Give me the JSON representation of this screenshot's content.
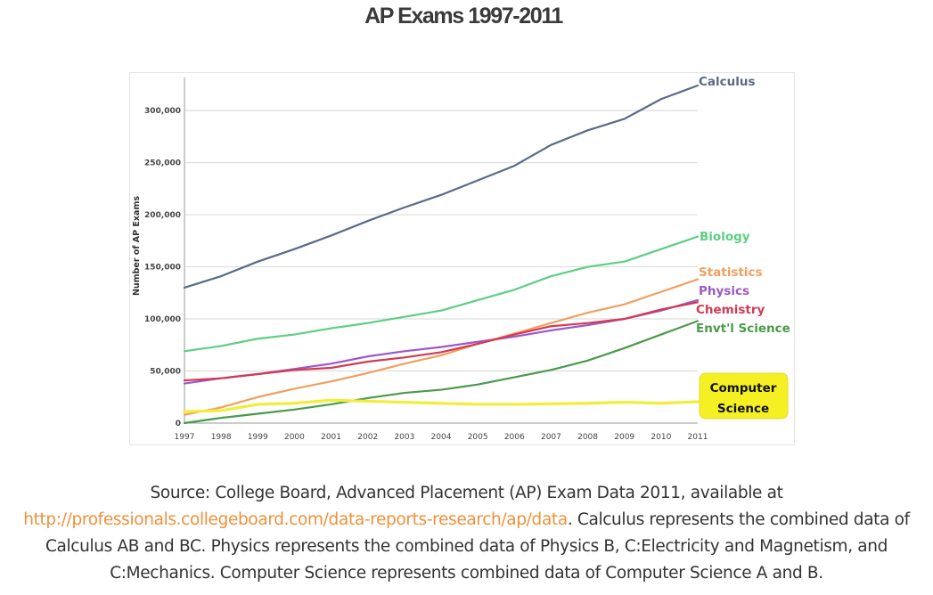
{
  "page": {
    "title": "AP Exams 1997-2011"
  },
  "caption": {
    "part1": "Source: College Board, Advanced Placement (AP) Exam Data 2011, available at",
    "link_text": "http://professionals.collegeboard.com/data-reports-research/ap/data",
    "part2": ". Calculus represents the combined data of Calculus AB and BC. Physics represents the combined data of Physics B, C:Electricity and Magnetism, and C:Mechanics. Computer Science represents combined data of Computer Science A and B."
  },
  "colors": {
    "Calculus": "#5a6b87",
    "Biology": "#5ccf82",
    "Statistics": "#f0a060",
    "Physics": "#9b59c8",
    "Chemistry": "#d23a52",
    "Envt'l Science": "#4a9a4a",
    "Computer Science": "#f0ee3a",
    "grid": "#dddddd",
    "label_box": "#f5f024"
  },
  "chart_data": {
    "type": "line",
    "title": "",
    "xlabel": "",
    "ylabel": "Number of AP Exams",
    "x": [
      1997,
      1998,
      1999,
      2000,
      2001,
      2002,
      2003,
      2004,
      2005,
      2006,
      2007,
      2008,
      2009,
      2010,
      2011
    ],
    "ylim": [
      0,
      330000
    ],
    "yticks": [
      0,
      50000,
      100000,
      150000,
      200000,
      250000,
      300000
    ],
    "ytick_labels": [
      "0",
      "50,000",
      "100,000",
      "150,000",
      "200,000",
      "250,000",
      "300,000"
    ],
    "grid": true,
    "legend": "end-of-line labels",
    "series": [
      {
        "name": "Calculus",
        "values": [
          130000,
          141000,
          155000,
          167000,
          180000,
          194000,
          207000,
          219000,
          233000,
          247000,
          267000,
          281000,
          292000,
          311000,
          324000
        ]
      },
      {
        "name": "Biology",
        "values": [
          69000,
          74000,
          81000,
          85000,
          91000,
          96000,
          102000,
          108000,
          118000,
          128000,
          141000,
          150000,
          155000,
          167000,
          179000
        ]
      },
      {
        "name": "Statistics",
        "values": [
          8000,
          15000,
          25000,
          33000,
          40000,
          48000,
          57000,
          65000,
          76000,
          86000,
          96000,
          106000,
          114000,
          126000,
          138000
        ]
      },
      {
        "name": "Physics",
        "values": [
          38000,
          43000,
          47000,
          52000,
          57000,
          64000,
          69000,
          73000,
          78000,
          83000,
          89000,
          94000,
          100000,
          108000,
          118000
        ]
      },
      {
        "name": "Chemistry",
        "values": [
          41000,
          43000,
          47000,
          51000,
          53000,
          59000,
          63000,
          68000,
          76000,
          85000,
          93000,
          96000,
          100000,
          109000,
          116000
        ]
      },
      {
        "name": "Envt'l Science",
        "values": [
          0,
          5000,
          9000,
          13000,
          18000,
          24000,
          29000,
          32000,
          37000,
          44000,
          51000,
          60000,
          72000,
          85000,
          98000
        ]
      },
      {
        "name": "Computer Science",
        "values": [
          11000,
          12000,
          18000,
          19000,
          22000,
          21000,
          20000,
          19000,
          18000,
          18000,
          18500,
          19000,
          20000,
          19000,
          20500
        ]
      }
    ],
    "labels": {
      "Calculus": "Calculus",
      "Biology": "Biology",
      "Statistics": "Statistics",
      "Physics": "Physics",
      "Chemistry": "Chemistry",
      "Envt'l Science": "Envt'l Science",
      "Computer Science": [
        "Computer",
        "Science"
      ]
    }
  }
}
